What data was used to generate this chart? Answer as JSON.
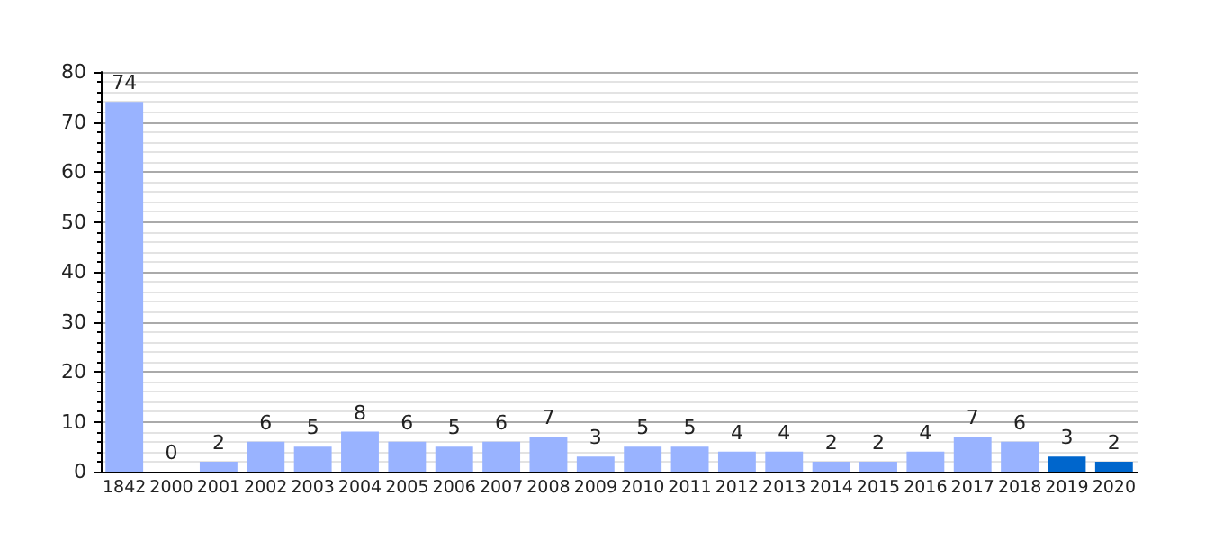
{
  "chart_data": {
    "type": "bar",
    "categories": [
      "1842",
      "2000",
      "2001",
      "2002",
      "2003",
      "2004",
      "2005",
      "2006",
      "2007",
      "2008",
      "2009",
      "2010",
      "2011",
      "2012",
      "2013",
      "2014",
      "2015",
      "2016",
      "2017",
      "2018",
      "2019",
      "2020"
    ],
    "values": [
      74,
      0,
      2,
      6,
      5,
      8,
      6,
      5,
      6,
      7,
      3,
      5,
      5,
      4,
      4,
      2,
      2,
      4,
      7,
      6,
      3,
      2
    ],
    "colors": [
      "#99b3ff",
      "#99b3ff",
      "#99b3ff",
      "#99b3ff",
      "#99b3ff",
      "#99b3ff",
      "#99b3ff",
      "#99b3ff",
      "#99b3ff",
      "#99b3ff",
      "#99b3ff",
      "#99b3ff",
      "#99b3ff",
      "#99b3ff",
      "#99b3ff",
      "#99b3ff",
      "#99b3ff",
      "#99b3ff",
      "#99b3ff",
      "#99b3ff",
      "#0066cc",
      "#0066cc"
    ],
    "ylim": [
      0,
      80
    ],
    "yticks": [
      0,
      10,
      20,
      30,
      40,
      50,
      60,
      70,
      80
    ],
    "grid": true,
    "data_labels": true
  }
}
